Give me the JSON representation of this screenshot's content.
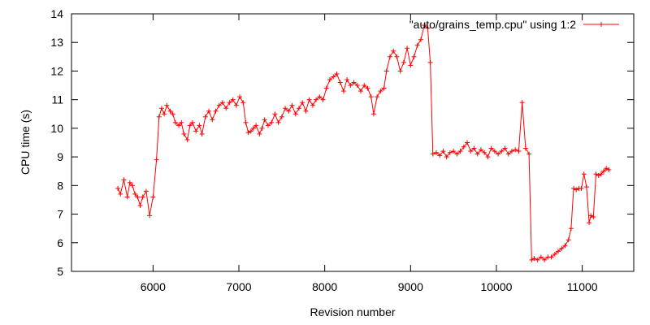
{
  "chart_data": {
    "type": "line",
    "title": "",
    "xlabel": "Revision number",
    "ylabel": "CPU time (s)",
    "xlim": [
      5050,
      11600
    ],
    "ylim": [
      5,
      14
    ],
    "x_ticks": [
      6000,
      7000,
      8000,
      9000,
      10000,
      11000
    ],
    "y_ticks": [
      5,
      6,
      7,
      8,
      9,
      10,
      11,
      12,
      13,
      14
    ],
    "grid": false,
    "legend": "top-right",
    "series": [
      {
        "name": "\"auto/grains_temp.cpu\" using 1:2",
        "color": "#ff0000",
        "marker": "plus",
        "points": [
          [
            5590,
            7.9
          ],
          [
            5620,
            7.7
          ],
          [
            5660,
            8.2
          ],
          [
            5700,
            7.6
          ],
          [
            5730,
            8.1
          ],
          [
            5760,
            8.0
          ],
          [
            5790,
            7.7
          ],
          [
            5820,
            7.6
          ],
          [
            5850,
            7.3
          ],
          [
            5880,
            7.6
          ],
          [
            5920,
            7.8
          ],
          [
            5960,
            6.95
          ],
          [
            6000,
            7.6
          ],
          [
            6040,
            8.9
          ],
          [
            6070,
            10.4
          ],
          [
            6100,
            10.7
          ],
          [
            6130,
            10.5
          ],
          [
            6160,
            10.8
          ],
          [
            6200,
            10.6
          ],
          [
            6230,
            10.5
          ],
          [
            6260,
            10.2
          ],
          [
            6300,
            10.1
          ],
          [
            6330,
            10.2
          ],
          [
            6360,
            9.8
          ],
          [
            6400,
            9.6
          ],
          [
            6430,
            10.1
          ],
          [
            6460,
            10.2
          ],
          [
            6500,
            9.9
          ],
          [
            6540,
            10.1
          ],
          [
            6570,
            9.8
          ],
          [
            6610,
            10.4
          ],
          [
            6650,
            10.6
          ],
          [
            6690,
            10.3
          ],
          [
            6730,
            10.6
          ],
          [
            6770,
            10.8
          ],
          [
            6810,
            10.9
          ],
          [
            6850,
            10.7
          ],
          [
            6890,
            10.9
          ],
          [
            6930,
            11.0
          ],
          [
            6970,
            10.8
          ],
          [
            7010,
            11.1
          ],
          [
            7050,
            10.9
          ],
          [
            7080,
            10.2
          ],
          [
            7110,
            9.85
          ],
          [
            7140,
            9.9
          ],
          [
            7170,
            10.0
          ],
          [
            7200,
            10.1
          ],
          [
            7240,
            9.8
          ],
          [
            7270,
            10.0
          ],
          [
            7300,
            10.3
          ],
          [
            7340,
            10.1
          ],
          [
            7380,
            10.2
          ],
          [
            7420,
            10.5
          ],
          [
            7460,
            10.2
          ],
          [
            7500,
            10.4
          ],
          [
            7540,
            10.7
          ],
          [
            7580,
            10.6
          ],
          [
            7620,
            10.8
          ],
          [
            7660,
            10.5
          ],
          [
            7700,
            10.7
          ],
          [
            7740,
            10.9
          ],
          [
            7780,
            10.6
          ],
          [
            7820,
            11.0
          ],
          [
            7860,
            10.8
          ],
          [
            7900,
            11.0
          ],
          [
            7940,
            11.1
          ],
          [
            7980,
            11.0
          ],
          [
            8020,
            11.4
          ],
          [
            8060,
            11.7
          ],
          [
            8100,
            11.8
          ],
          [
            8140,
            11.9
          ],
          [
            8180,
            11.6
          ],
          [
            8220,
            11.3
          ],
          [
            8260,
            11.7
          ],
          [
            8300,
            11.5
          ],
          [
            8340,
            11.6
          ],
          [
            8380,
            11.5
          ],
          [
            8420,
            11.3
          ],
          [
            8460,
            11.5
          ],
          [
            8500,
            11.4
          ],
          [
            8540,
            11.1
          ],
          [
            8570,
            10.5
          ],
          [
            8610,
            11.1
          ],
          [
            8650,
            11.3
          ],
          [
            8690,
            11.4
          ],
          [
            8720,
            12.0
          ],
          [
            8760,
            12.5
          ],
          [
            8800,
            12.7
          ],
          [
            8840,
            12.5
          ],
          [
            8880,
            12.0
          ],
          [
            8920,
            12.3
          ],
          [
            8960,
            12.8
          ],
          [
            9000,
            12.2
          ],
          [
            9040,
            12.5
          ],
          [
            9080,
            12.9
          ],
          [
            9120,
            13.1
          ],
          [
            9160,
            13.6
          ],
          [
            9200,
            13.5
          ],
          [
            9230,
            12.3
          ],
          [
            9260,
            9.1
          ],
          [
            9300,
            9.15
          ],
          [
            9340,
            9.05
          ],
          [
            9380,
            9.2
          ],
          [
            9420,
            9.0
          ],
          [
            9460,
            9.15
          ],
          [
            9500,
            9.2
          ],
          [
            9540,
            9.1
          ],
          [
            9580,
            9.2
          ],
          [
            9620,
            9.35
          ],
          [
            9660,
            9.5
          ],
          [
            9700,
            9.2
          ],
          [
            9740,
            9.3
          ],
          [
            9780,
            9.1
          ],
          [
            9820,
            9.25
          ],
          [
            9860,
            9.15
          ],
          [
            9900,
            9.0
          ],
          [
            9940,
            9.3
          ],
          [
            9980,
            9.2
          ],
          [
            10020,
            9.1
          ],
          [
            10060,
            9.2
          ],
          [
            10100,
            9.3
          ],
          [
            10140,
            9.1
          ],
          [
            10180,
            9.2
          ],
          [
            10220,
            9.25
          ],
          [
            10260,
            9.2
          ],
          [
            10300,
            10.9
          ],
          [
            10340,
            9.3
          ],
          [
            10380,
            9.1
          ],
          [
            10410,
            5.4
          ],
          [
            10440,
            5.45
          ],
          [
            10480,
            5.4
          ],
          [
            10520,
            5.5
          ],
          [
            10560,
            5.4
          ],
          [
            10600,
            5.5
          ],
          [
            10640,
            5.5
          ],
          [
            10680,
            5.6
          ],
          [
            10720,
            5.7
          ],
          [
            10760,
            5.8
          ],
          [
            10800,
            5.9
          ],
          [
            10840,
            6.1
          ],
          [
            10870,
            6.5
          ],
          [
            10900,
            7.9
          ],
          [
            10930,
            7.85
          ],
          [
            10960,
            7.9
          ],
          [
            10990,
            7.9
          ],
          [
            11020,
            8.4
          ],
          [
            11050,
            7.95
          ],
          [
            11080,
            6.7
          ],
          [
            11100,
            6.95
          ],
          [
            11130,
            6.9
          ],
          [
            11160,
            8.4
          ],
          [
            11190,
            8.35
          ],
          [
            11220,
            8.4
          ],
          [
            11250,
            8.5
          ],
          [
            11280,
            8.6
          ],
          [
            11310,
            8.55
          ]
        ]
      }
    ]
  }
}
